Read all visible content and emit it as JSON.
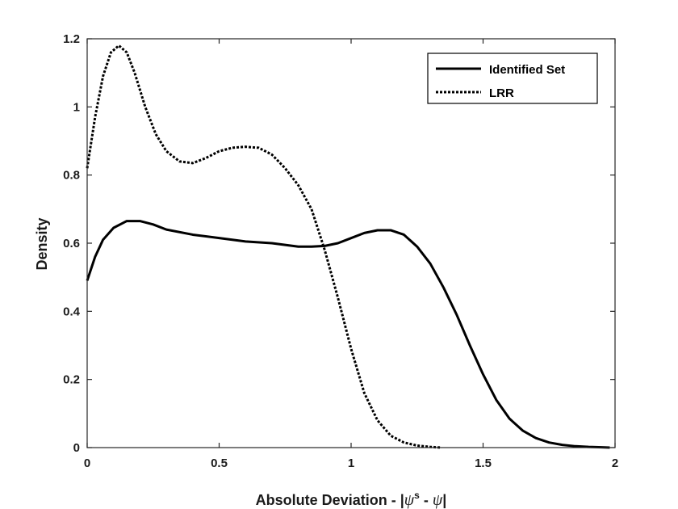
{
  "chart_data": {
    "type": "line",
    "title": "",
    "xlabel_prefix": "Absolute Deviation - |",
    "xlabel_psi": "ψ",
    "xlabel_sup": "s",
    "xlabel_mid": " - ",
    "xlabel_psi2": "ψ",
    "xlabel_suffix": "|",
    "ylabel": "Density",
    "xlim": [
      0,
      2
    ],
    "ylim": [
      0,
      1.2
    ],
    "xticks": [
      0,
      0.5,
      1,
      1.5,
      2
    ],
    "xtick_labels": [
      "0",
      "0.5",
      "1",
      "1.5",
      "2"
    ],
    "yticks": [
      0,
      0.2,
      0.4,
      0.6,
      0.8,
      1.0,
      1.2
    ],
    "ytick_labels": [
      "0",
      "0.2",
      "0.4",
      "0.6",
      "0.8",
      "1",
      "1.2"
    ],
    "grid": false,
    "legend_position": "top-right",
    "series": [
      {
        "name": "Identified Set",
        "style": "solid",
        "color": "#000000",
        "x": [
          0,
          0.03,
          0.06,
          0.1,
          0.15,
          0.2,
          0.25,
          0.3,
          0.4,
          0.5,
          0.6,
          0.7,
          0.8,
          0.85,
          0.9,
          0.95,
          1.0,
          1.05,
          1.1,
          1.15,
          1.2,
          1.25,
          1.3,
          1.35,
          1.4,
          1.45,
          1.5,
          1.55,
          1.6,
          1.65,
          1.7,
          1.75,
          1.8,
          1.85,
          1.9,
          1.95,
          1.98
        ],
        "y": [
          0.49,
          0.56,
          0.61,
          0.645,
          0.665,
          0.665,
          0.655,
          0.64,
          0.625,
          0.615,
          0.605,
          0.6,
          0.59,
          0.59,
          0.592,
          0.6,
          0.615,
          0.63,
          0.638,
          0.638,
          0.625,
          0.59,
          0.54,
          0.47,
          0.39,
          0.3,
          0.215,
          0.14,
          0.085,
          0.05,
          0.028,
          0.015,
          0.008,
          0.004,
          0.002,
          0.001,
          0.0
        ]
      },
      {
        "name": "LRR",
        "style": "dotted",
        "color": "#000000",
        "x": [
          0,
          0.03,
          0.06,
          0.09,
          0.12,
          0.15,
          0.18,
          0.22,
          0.26,
          0.3,
          0.35,
          0.4,
          0.45,
          0.5,
          0.55,
          0.6,
          0.65,
          0.7,
          0.75,
          0.8,
          0.85,
          0.9,
          0.95,
          1.0,
          1.05,
          1.1,
          1.15,
          1.2,
          1.25,
          1.3,
          1.34
        ],
        "y": [
          0.82,
          0.97,
          1.09,
          1.16,
          1.18,
          1.16,
          1.1,
          1.0,
          0.92,
          0.87,
          0.84,
          0.835,
          0.85,
          0.87,
          0.88,
          0.883,
          0.88,
          0.86,
          0.82,
          0.77,
          0.7,
          0.58,
          0.44,
          0.29,
          0.16,
          0.08,
          0.035,
          0.015,
          0.006,
          0.002,
          0.0
        ]
      }
    ]
  }
}
